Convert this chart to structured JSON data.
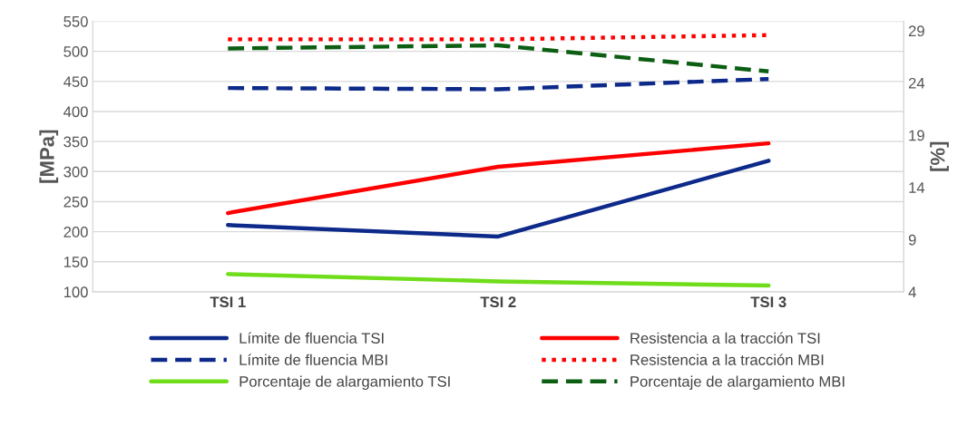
{
  "chart_data": {
    "type": "line",
    "categories": [
      "TSI 1",
      "TSI 2",
      "TSI 3"
    ],
    "ylabel": "[MPa]",
    "y2label": "[%]",
    "ylim": [
      100,
      550
    ],
    "yticks": [
      100,
      150,
      200,
      250,
      300,
      350,
      400,
      450,
      500,
      550
    ],
    "y2lim": [
      4,
      29.9
    ],
    "y2ticks": [
      4,
      9,
      14,
      19,
      24,
      29
    ],
    "grid": "y",
    "legend": "bottom",
    "marker": "none",
    "series": [
      {
        "name": "Límite de fluencia TSI",
        "color": "#0d2a8a",
        "line_style": "solid",
        "values": [
          211,
          192,
          318
        ]
      },
      {
        "name": "Resistencia a la tracción TSI",
        "color": "#ff0000",
        "line_style": "solid",
        "values": [
          231,
          308,
          347
        ]
      },
      {
        "name": "Límite de fluencia MBI",
        "color": "#0d2a8a",
        "line_style": "dashed",
        "values": [
          439,
          437,
          454
        ]
      },
      {
        "name": "Resistencia a la tracción MBI",
        "color": "#ff0000",
        "line_style": "dotted",
        "values": [
          520,
          520,
          527
        ]
      },
      {
        "name": "Porcentaje de alargamiento TSI",
        "color": "#6fdd1a",
        "line_style": "solid",
        "axis": "y2",
        "values": [
          5.7,
          5.0,
          4.6
        ]
      },
      {
        "name": "Porcentaje de alargamiento MBI",
        "color": "#0b5e12",
        "line_style": "dashed",
        "axis": "y2",
        "values": [
          27.3,
          27.6,
          25.1
        ]
      }
    ]
  }
}
